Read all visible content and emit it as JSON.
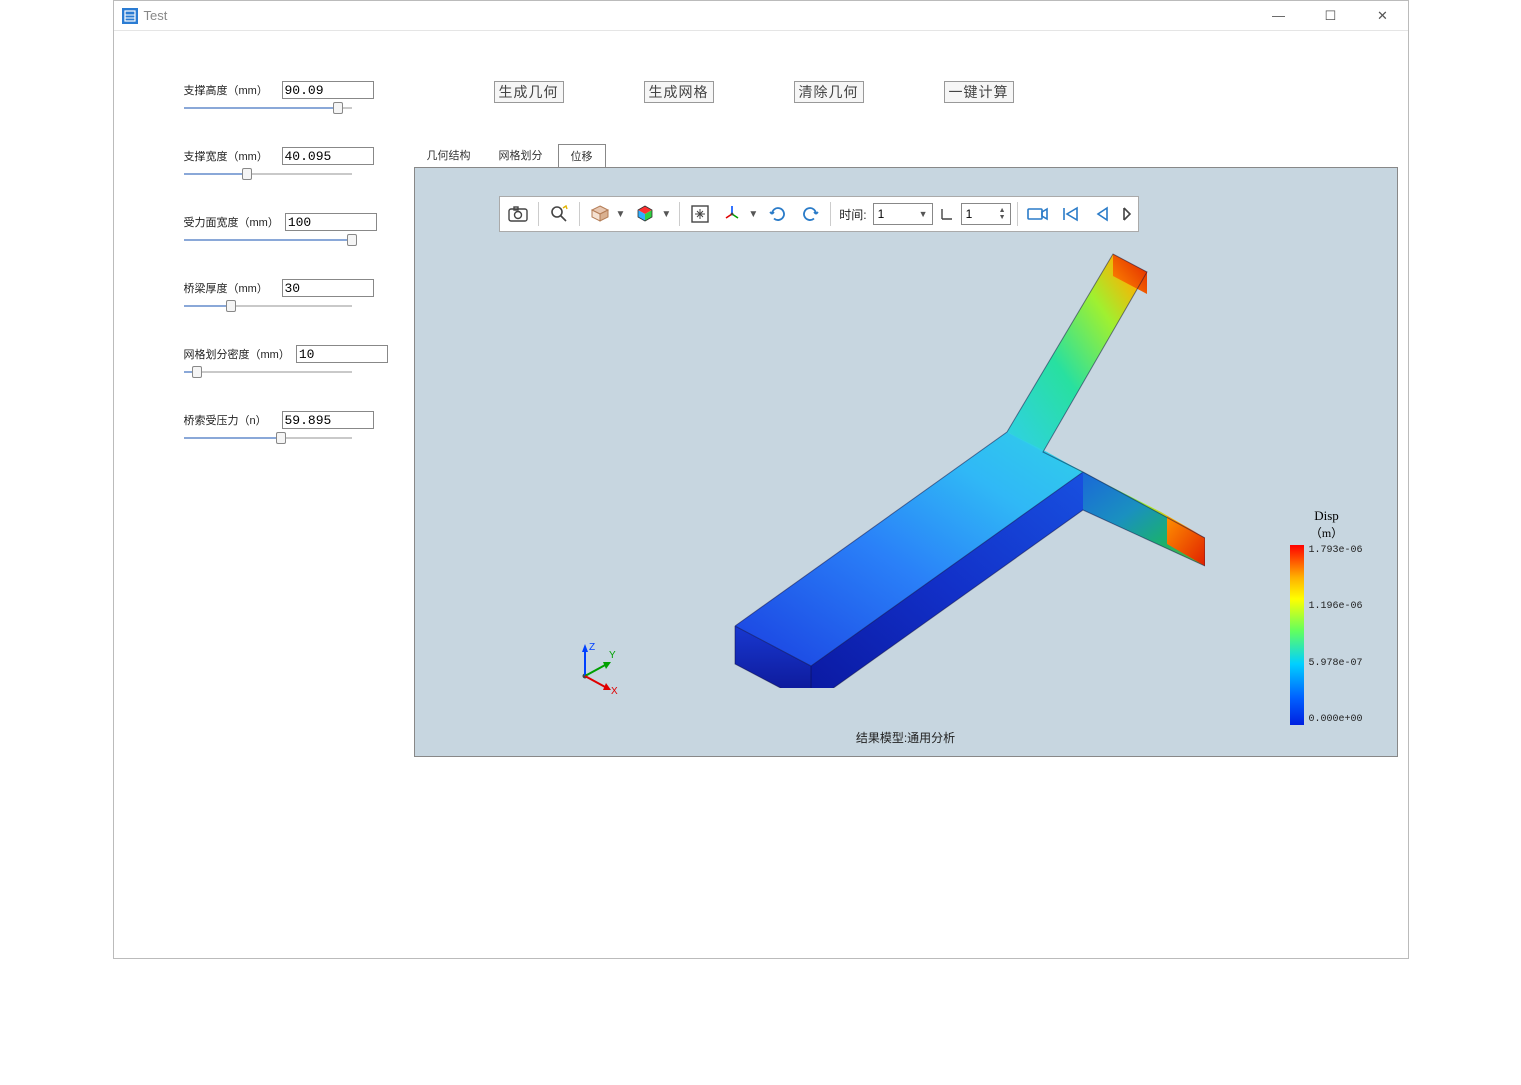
{
  "window": {
    "title": "Test",
    "controls": {
      "min": "—",
      "max": "☐",
      "close": "✕"
    }
  },
  "params": [
    {
      "label": "支撑高度（mm）",
      "value": "90.09",
      "slider_pct": 92
    },
    {
      "label": "支撑宽度（mm）",
      "value": "40.095",
      "slider_pct": 38
    },
    {
      "label": "受力面宽度（mm）",
      "value": "100",
      "slider_pct": 100
    },
    {
      "label": "桥梁厚度（mm）",
      "value": "30",
      "slider_pct": 28
    },
    {
      "label": "网格划分密度（mm）",
      "value": "10",
      "slider_pct": 8
    },
    {
      "label": "桥索受压力（n）",
      "value": "59.895",
      "slider_pct": 58
    }
  ],
  "actions": [
    {
      "label": "生成几何"
    },
    {
      "label": "生成网格"
    },
    {
      "label": "清除几何"
    },
    {
      "label": "一键计算"
    }
  ],
  "tabs": [
    {
      "label": "几何结构",
      "active": false
    },
    {
      "label": "网格划分",
      "active": false
    },
    {
      "label": "位移",
      "active": true
    }
  ],
  "toolbar": {
    "time_label": "时间:",
    "time_combo": "1",
    "time_spin": "1"
  },
  "triad": {
    "x": "X",
    "y": "Y",
    "z": "Z"
  },
  "legend": {
    "title": "Disp",
    "unit": "（m）",
    "ticks": [
      "1.793e-06",
      "1.196e-06",
      "5.978e-07",
      "0.000e+00"
    ],
    "colors": [
      "#ff0000",
      "#ffb000",
      "#ffff00",
      "#60ff60",
      "#00d0ff",
      "#0060ff",
      "#0020e0"
    ]
  },
  "footer": "结果模型:通用分析",
  "beam": {
    "gradient_main": [
      "#1020c0",
      "#1a3fe0",
      "#2060f0",
      "#2a80f8",
      "#30a0fa",
      "#30c8f4"
    ],
    "gradient_wing": [
      "#30c8f4",
      "#28e0b0",
      "#60f060",
      "#d0f020",
      "#ffc000",
      "#ff6000",
      "#ff1000"
    ]
  }
}
